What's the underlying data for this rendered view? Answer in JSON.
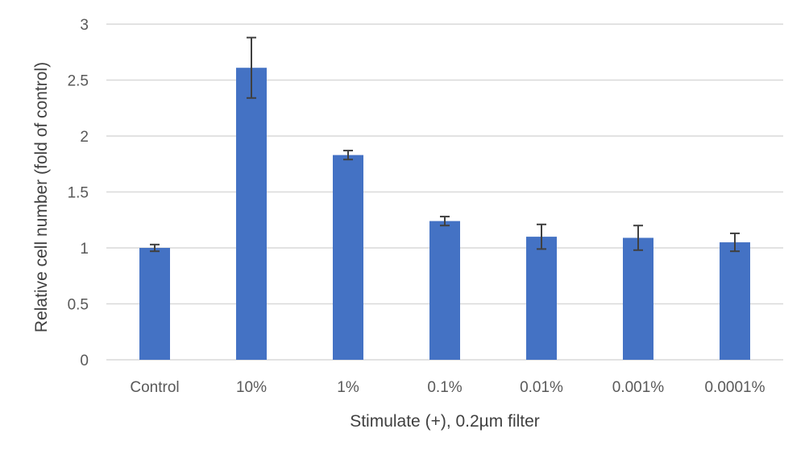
{
  "chart_data": {
    "type": "bar",
    "title": "",
    "xlabel": "Stimulate (+), 0.2µm filter",
    "ylabel": "Relative cell number (fold of control)",
    "categories": [
      "Control",
      "10%",
      "1%",
      "0.1%",
      "0.01%",
      "0.001%",
      "0.0001%"
    ],
    "values": [
      1.0,
      2.61,
      1.83,
      1.24,
      1.1,
      1.09,
      1.05
    ],
    "error": [
      0.03,
      0.27,
      0.04,
      0.04,
      0.11,
      0.11,
      0.08
    ],
    "ylim": [
      0,
      3
    ],
    "yticks": [
      0,
      0.5,
      1,
      1.5,
      2,
      2.5,
      3
    ],
    "ytick_labels": [
      "0",
      "0.5",
      "1",
      "1.5",
      "2",
      "2.5",
      "3"
    ],
    "grid": true,
    "bar_color": "#4472C4",
    "error_color": "#404040",
    "grid_color": "#D9D9D9"
  }
}
